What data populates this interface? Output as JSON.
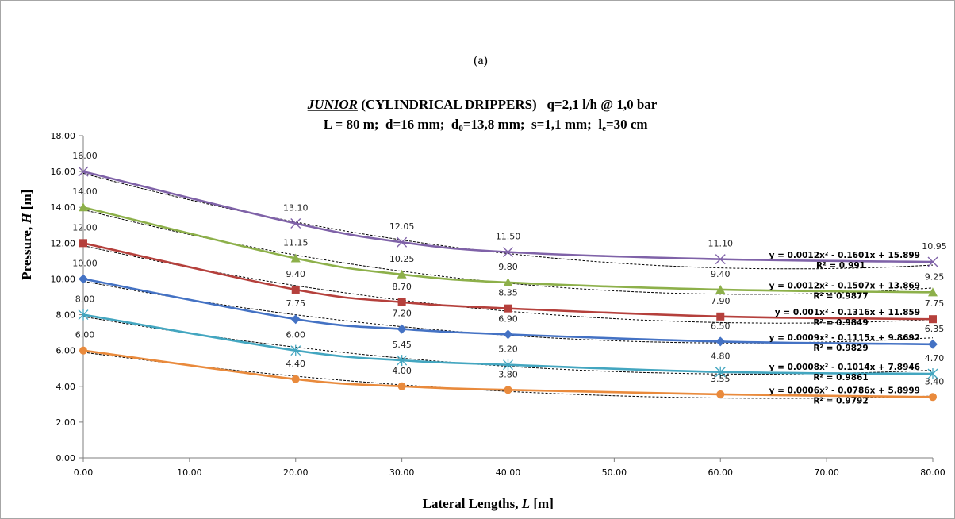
{
  "chart_data": {
    "type": "line",
    "panel_label": "(a)",
    "title": {
      "brand": "JUNIOR",
      "line1_rest": " (CYLINDRICAL DRIPPERS)   q=2,1 l/h @ 1,0 bar",
      "line2_a": "L = 80 m;  d=16 mm;  d",
      "line2_sub1": "0",
      "line2_b": "=13,8 mm;  s=1,1 mm;  l",
      "line2_sub2": "e",
      "line2_c": "=30 cm"
    },
    "xlabel": {
      "text": "Lateral Lengths, ",
      "var": "L",
      "unit": " [m]"
    },
    "ylabel": {
      "text": "Pressure, ",
      "var": "H",
      "unit": " [m]"
    },
    "xlim": [
      0,
      80
    ],
    "ylim": [
      0,
      18
    ],
    "xticks": [
      "0.00",
      "10.00",
      "20.00",
      "30.00",
      "40.00",
      "50.00",
      "60.00",
      "70.00",
      "80.00"
    ],
    "yticks": [
      "0.00",
      "2.00",
      "4.00",
      "6.00",
      "8.00",
      "10.00",
      "12.00",
      "14.00",
      "16.00",
      "18.00"
    ],
    "grid": false,
    "legend": "none",
    "x": [
      0,
      20,
      30,
      40,
      60,
      80
    ],
    "series": [
      {
        "marker": "x",
        "color": "#7f62a8",
        "values": [
          16.0,
          13.1,
          12.05,
          11.5,
          11.1,
          10.95
        ],
        "labels": [
          "16.00",
          "13.10",
          "12.05",
          "11.50",
          "11.10",
          "10.95"
        ],
        "trend": [
          0.0012,
          -0.1601,
          15.899
        ],
        "eq": "y = 0.0012x² - 0.1601x + 15.899",
        "r2": "R² = 0.991"
      },
      {
        "marker": "triangle",
        "color": "#8db04a",
        "values": [
          14.0,
          11.15,
          10.25,
          9.8,
          9.4,
          9.25
        ],
        "labels": [
          "14.00",
          "11.15",
          "10.25",
          "9.80",
          "9.40",
          "9.25"
        ],
        "trend": [
          0.0012,
          -0.1507,
          13.869
        ],
        "eq": "y = 0.0012x² - 0.1507x + 13.869",
        "r2": "R² = 0.9877"
      },
      {
        "marker": "square",
        "color": "#b5403c",
        "values": [
          12.0,
          9.4,
          8.7,
          8.35,
          7.9,
          7.75
        ],
        "labels": [
          "12.00",
          "9.40",
          "8.70",
          "8.35",
          "7.90",
          "7.75"
        ],
        "trend": [
          0.001,
          -0.1316,
          11.859
        ],
        "eq": "y = 0.001x² - 0.1316x + 11.859",
        "r2": "R² = 0.9849"
      },
      {
        "marker": "diamond",
        "color": "#4472c4",
        "values": [
          10.0,
          7.75,
          7.2,
          6.9,
          6.5,
          6.35
        ],
        "labels": [
          "10.00",
          "7.75",
          "7.20",
          "6.90",
          "6.50",
          "6.35"
        ],
        "trend": [
          0.0009,
          -0.1115,
          9.8692
        ],
        "eq": "y = 0.0009x² - 0.1115x + 9.8692",
        "r2": "R² = 0.9829"
      },
      {
        "marker": "star",
        "color": "#43a6c0",
        "values": [
          8.0,
          6.0,
          5.45,
          5.2,
          4.8,
          4.7
        ],
        "labels": [
          "8.00",
          "6.00",
          "5.45",
          "5.20",
          "4.80",
          "4.70"
        ],
        "trend": [
          0.0008,
          -0.1014,
          7.8946
        ],
        "eq": "y = 0.0008x² - 0.1014x + 7.8946",
        "r2": "R² = 0.9861"
      },
      {
        "marker": "circle",
        "color": "#e98a3c",
        "values": [
          6.0,
          4.4,
          4.0,
          3.8,
          3.55,
          3.4
        ],
        "labels": [
          "6.00",
          "4.40",
          "4.00",
          "3.80",
          "3.55",
          "3.40"
        ],
        "trend": [
          0.0006,
          -0.0786,
          5.8999
        ],
        "eq": "y = 0.0006x² - 0.0786x + 5.8999",
        "r2": "R² = 0.9792"
      }
    ]
  }
}
